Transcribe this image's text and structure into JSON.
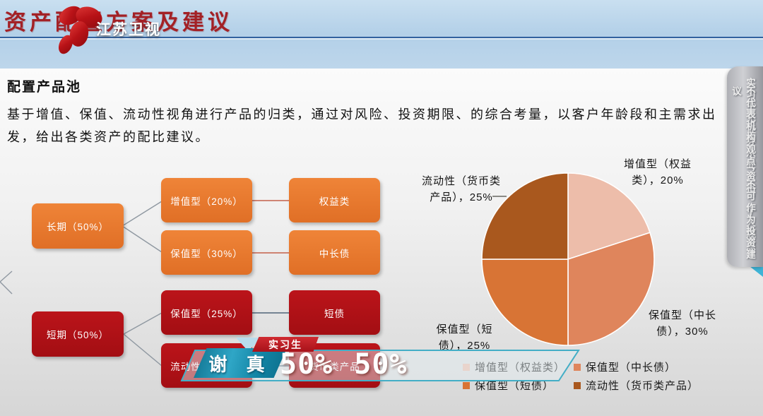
{
  "header": {
    "title": "资产配置方案及建议",
    "logo_text": "江苏卫视"
  },
  "slide": {
    "heading": "配置产品池",
    "paragraph": "基于增值、保值、流动性视角进行产品的归类，通过对风险、投资期限、的综合考量，以客户年龄段和主需求出发，给出各类资产的配比建议。"
  },
  "flowchart": {
    "long_term": "长期（50%）",
    "zengzhi": "增值型（20%）",
    "baozhi30": "保值型（30%）",
    "quanyi": "权益类",
    "zhongchangzhai": "中长债",
    "duanqi": "短期（50%）",
    "baozhi25": "保值型（25%）",
    "duanzhai": "短债",
    "liudong": "流动性（25%）",
    "huobi": "货币类产品"
  },
  "chart_data": {
    "type": "pie",
    "start_angle_deg": 0,
    "direction": "clockwise",
    "legend_position": "bottom",
    "series": [
      {
        "label": "增值型（权益类）",
        "value": 20,
        "color": "#edbdaa",
        "data_label": "增值型（权益\n类），20%"
      },
      {
        "label": "保值型（中长债）",
        "value": 30,
        "color": "#df855c",
        "data_label": "保值型（中长\n债），30%"
      },
      {
        "label": "保值型（短债）",
        "value": 25,
        "color": "#d87435",
        "data_label": "保值型（短\n债），25%"
      },
      {
        "label": "流动性（货币类产品）",
        "value": 25,
        "color": "#a9581e",
        "data_label": "流动性（货币类\n产品），25%"
      }
    ]
  },
  "caption": {
    "role": "实习生",
    "name": "谢 真",
    "value_left": "50%",
    "value_right": "50%"
  },
  "disclaimer": {
    "line1": "实习生无证券从业资格，个人观点",
    "line2": "不代表机构观点，不可作为投资建议"
  },
  "colors": {
    "header_red": "#a32126",
    "orange_node": "#e5762e",
    "red_node": "#ae1117",
    "caption_teal": "#43aec6"
  }
}
